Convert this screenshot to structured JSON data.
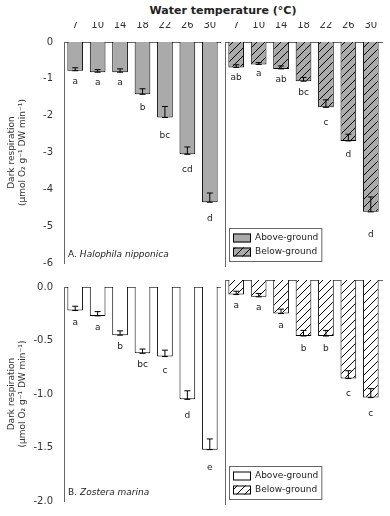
{
  "chart_data": [
    {
      "type": "bar",
      "title": "Water temperature (°C)",
      "ylabel": "Dark respiration\n(μmol O₂ g⁻¹ DW min⁻¹)",
      "annotations": [
        {
          "text": "A."
        },
        {
          "text": "Halophila nipponica",
          "style": "italic"
        }
      ],
      "categories": [
        "7",
        "10",
        "14",
        "18",
        "22",
        "26",
        "30"
      ],
      "series": [
        {
          "name": "Above-ground",
          "color": "#aaaaaa",
          "values": [
            -0.78,
            -0.82,
            -0.82,
            -1.42,
            -2.05,
            -3.05,
            -4.35
          ],
          "errors": [
            0.08,
            0.07,
            0.09,
            0.15,
            0.3,
            0.2,
            0.25
          ],
          "letters": [
            "a",
            "a",
            "a",
            "b",
            "bc",
            "cd",
            "d"
          ]
        },
        {
          "name": "Below-ground",
          "color": "#aaaaaa",
          "values": [
            -0.68,
            -0.6,
            -0.72,
            -1.05,
            -1.75,
            -2.65,
            -4.55
          ],
          "errors": [
            0.07,
            0.05,
            0.08,
            0.1,
            0.2,
            0.18,
            0.4
          ],
          "letters": [
            "ab",
            "a",
            "ab",
            "bc",
            "c",
            "d",
            "d"
          ]
        }
      ],
      "ylim": [
        -6,
        0
      ],
      "yticks": [
        0,
        -1,
        -2,
        -3,
        -4,
        -5,
        -6
      ],
      "grid": false,
      "legend": "lower left",
      "tick_labels": true
    },
    {
      "type": "bar",
      "ylabel": "Dark respiration\n(μmol O₂ g⁻¹ DW min⁻¹)",
      "annotations": [
        {
          "text": "B."
        },
        {
          "text": "Zostera marina",
          "style": "italic"
        }
      ],
      "categories": [
        "7",
        "10",
        "14",
        "18",
        "22",
        "26",
        "30"
      ],
      "series": [
        {
          "name": "Above-ground",
          "color": "#ffffff",
          "values": [
            -0.22,
            -0.27,
            -0.45,
            -0.62,
            -0.65,
            -1.05,
            -1.52
          ],
          "errors": [
            0.04,
            0.04,
            0.04,
            0.04,
            0.06,
            0.08,
            0.1
          ],
          "letters": [
            "a",
            "a",
            "b",
            "bc",
            "c",
            "d",
            "e"
          ]
        },
        {
          "name": "Below-ground",
          "color": "#ffffff",
          "values": [
            -0.13,
            -0.15,
            -0.3,
            -0.5,
            -0.5,
            -0.88,
            -1.05
          ],
          "errors": [
            0.03,
            0.03,
            0.04,
            0.05,
            0.05,
            0.07,
            0.08
          ],
          "letters": [
            "a",
            "a",
            "a",
            "b",
            "b",
            "c",
            "c"
          ]
        }
      ],
      "ylim": [
        -2.0,
        0
      ],
      "yticks": [
        {
          "value": 0.0,
          "label": "0.0"
        },
        {
          "value": -0.5,
          "label": "-0.5"
        },
        {
          "value": -1.0,
          "label": "-1.0"
        },
        {
          "value": -1.5,
          "label": "-1.5"
        },
        {
          "value": -2.0,
          "label": "-2.0"
        }
      ],
      "grid": false,
      "legend": "lower left",
      "tick_labels": "y"
    }
  ]
}
